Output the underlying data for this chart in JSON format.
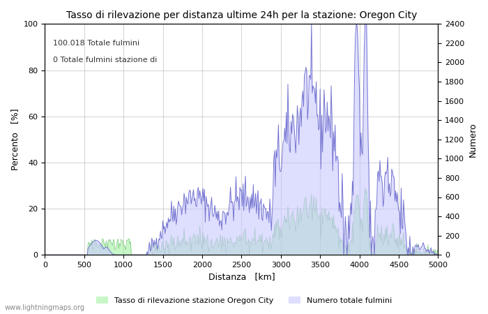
{
  "title": "Tasso di rilevazione per distanza ultime 24h per la stazione: Oregon City",
  "xlabel": "Distanza   [km]",
  "ylabel_left": "Percento   [%]",
  "ylabel_right": "Numero",
  "annotation_line1": "100.018 Totale fulmini",
  "annotation_line2": "0 Totale fulmini stazione di",
  "legend_green": "Tasso di rilevazione stazione Oregon City",
  "legend_blue": "Numero totale fulmini",
  "watermark": "www.lightningmaps.org",
  "xlim": [
    0,
    5000
  ],
  "ylim_left": [
    0,
    100
  ],
  "ylim_right": [
    0,
    2400
  ],
  "xticks": [
    0,
    500,
    1000,
    1500,
    2000,
    2500,
    3000,
    3500,
    4000,
    4500,
    5000
  ],
  "yticks_left": [
    0,
    20,
    40,
    60,
    80,
    100
  ],
  "yticks_right": [
    0,
    200,
    400,
    600,
    800,
    1000,
    1200,
    1400,
    1600,
    1800,
    2000,
    2200,
    2400
  ],
  "bg_color": "#ffffff",
  "grid_color": "#cccccc",
  "fill_green_color": "#90ee90",
  "fill_blue_color": "#c8c8ff",
  "line_blue_color": "#6666cc",
  "fill_green_alpha": 0.5,
  "fill_blue_alpha": 0.6
}
